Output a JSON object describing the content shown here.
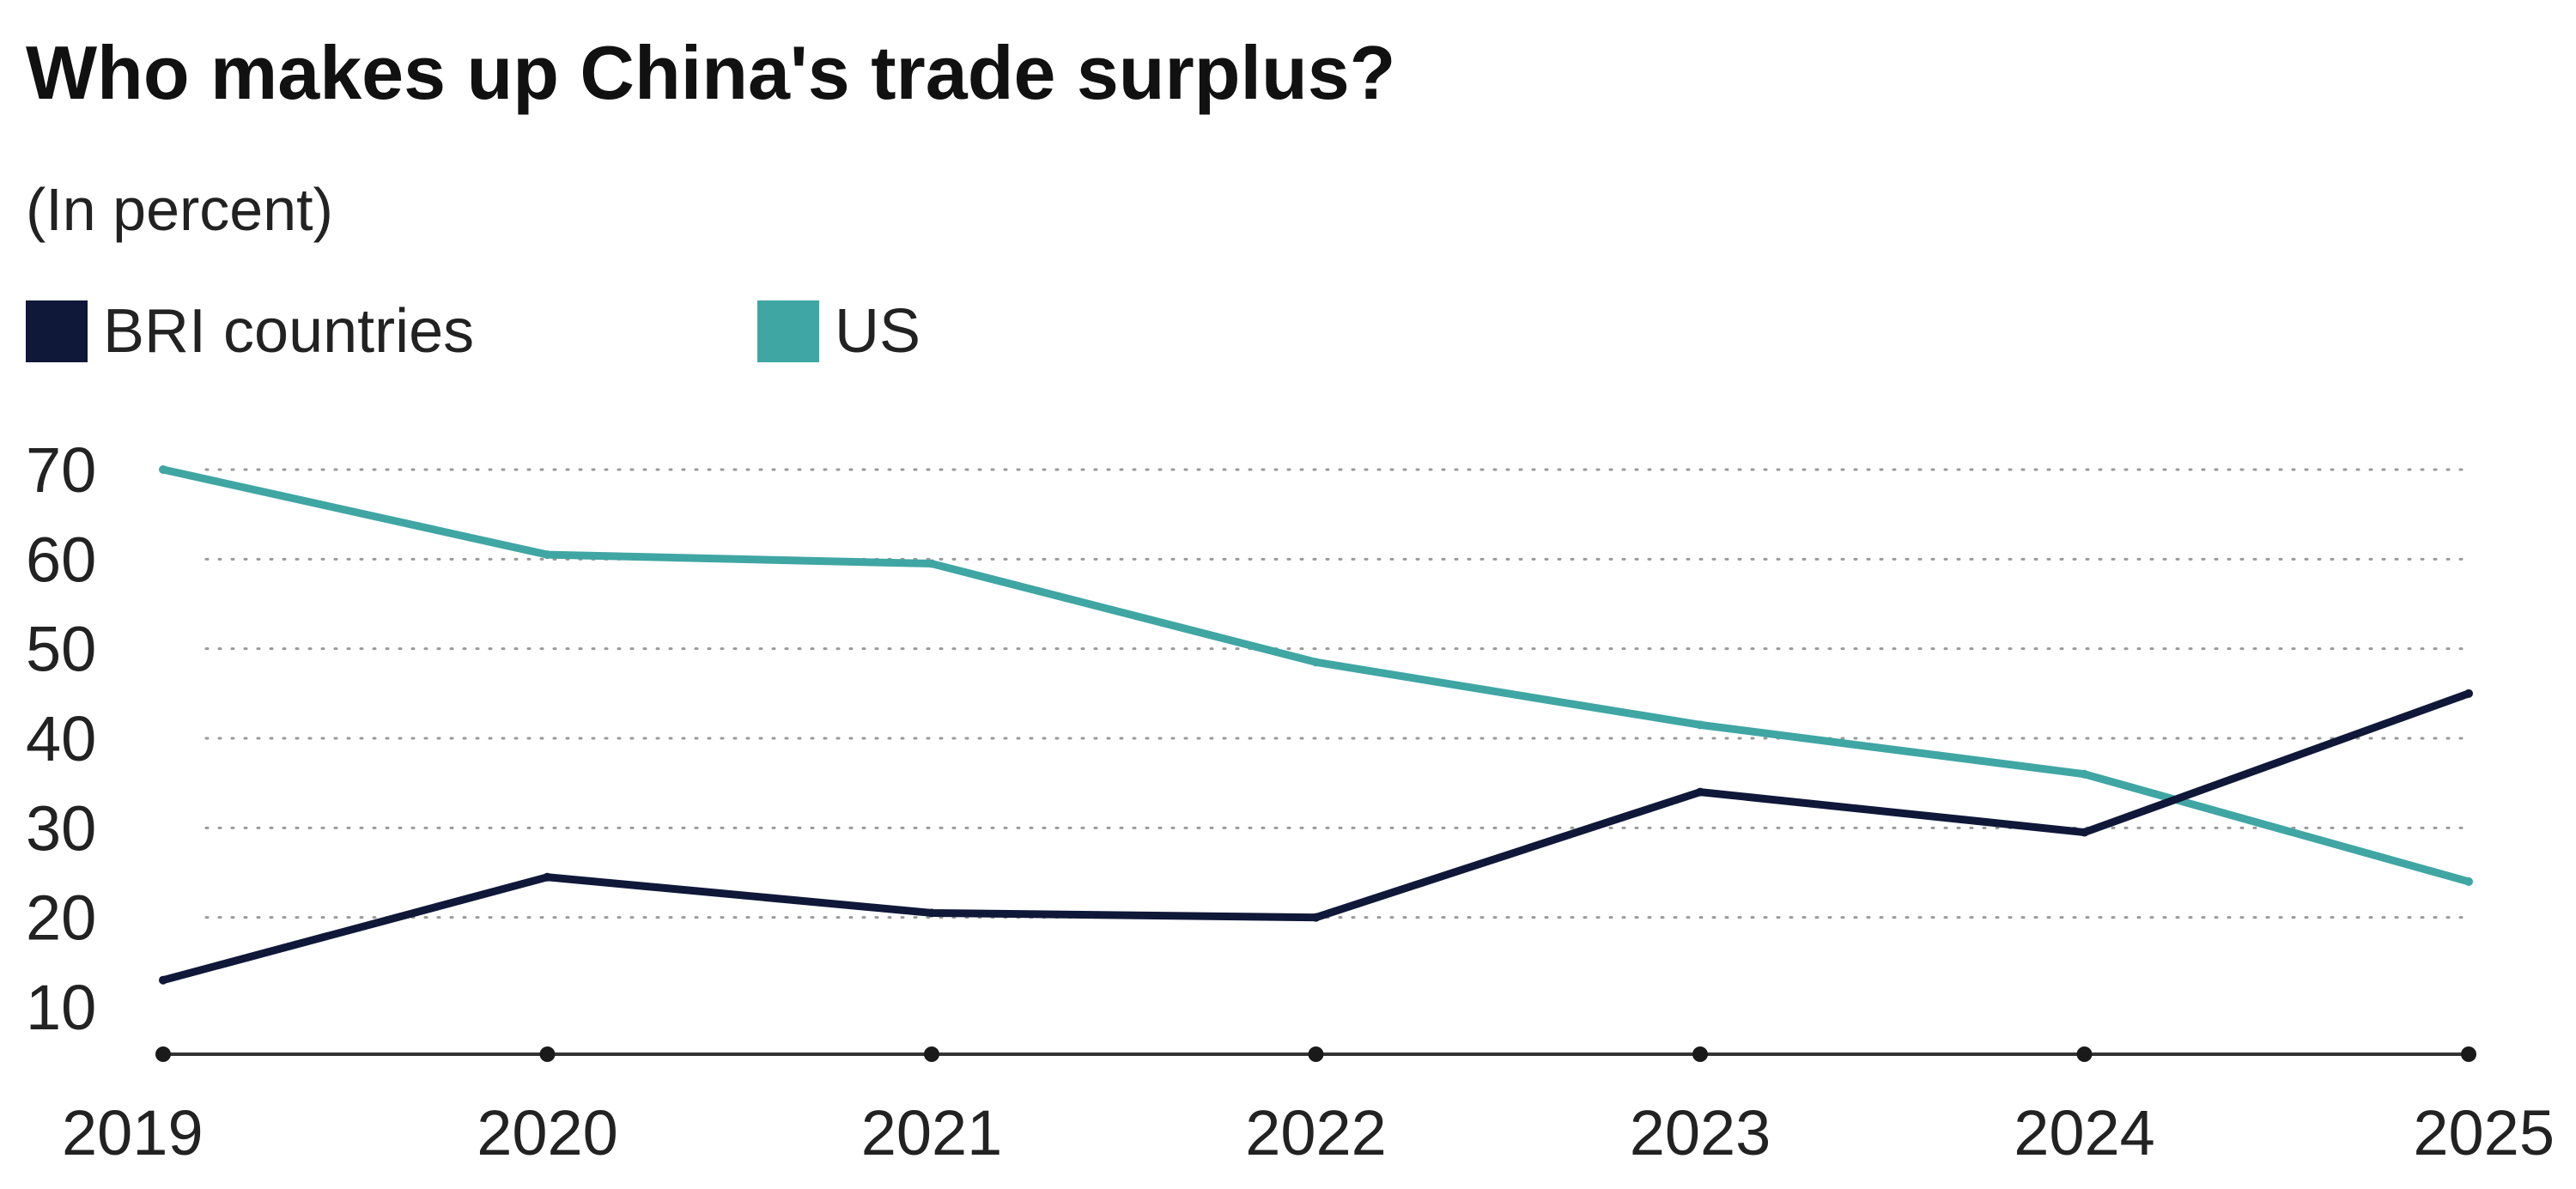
{
  "chart_data": {
    "type": "line",
    "title": "Who makes up China's trade surplus?",
    "subtitle": "(In percent)",
    "xlabel": "",
    "ylabel": "",
    "x": [
      "2019",
      "2020",
      "2021",
      "2022",
      "2023",
      "2024",
      "2025"
    ],
    "yticks": [
      10,
      20,
      30,
      40,
      50,
      60,
      70
    ],
    "ylim": [
      5,
      70
    ],
    "grid": true,
    "legend_position": "top-left",
    "series": [
      {
        "name": "BRI countries",
        "color": "#0f1838",
        "values": [
          13,
          24.5,
          20.5,
          20,
          34,
          29.5,
          45
        ]
      },
      {
        "name": "US",
        "color": "#3fa6a3",
        "values": [
          70,
          60.5,
          59.5,
          48.5,
          41.5,
          36,
          24
        ]
      }
    ]
  }
}
